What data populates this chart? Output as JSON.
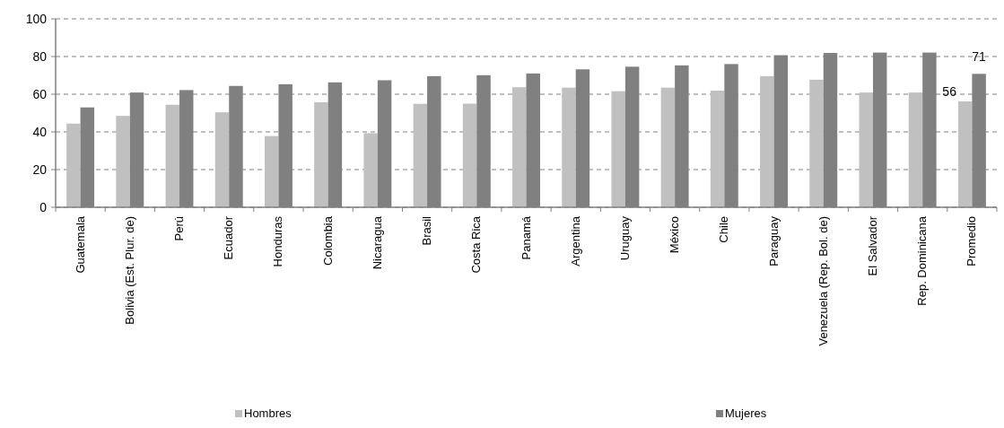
{
  "chart_data": {
    "type": "bar",
    "categories": [
      "Guatemala",
      "Bolivia (Est. Plur. de)",
      "Perú",
      "Ecuador",
      "Honduras",
      "Colombia",
      "Nicaragua",
      "Brasil",
      "Costa Rica",
      "Panamá",
      "Argentina",
      "Uruguay",
      "México",
      "Chile",
      "Paraguay",
      "Venezuela (Rep. Bol. de)",
      "El Salvador",
      "Rep. Dominicana",
      "Promedio"
    ],
    "series": [
      {
        "name": "Hombres",
        "color": "#c0c0c0",
        "values": [
          44.4,
          48.5,
          54.4,
          50.4,
          37.8,
          55.7,
          39.3,
          54.9,
          55.0,
          63.7,
          63.5,
          61.6,
          63.5,
          61.9,
          69.6,
          67.7,
          60.9,
          60.9,
          56.2
        ],
        "value_labels": [
          null,
          null,
          null,
          null,
          null,
          null,
          null,
          null,
          null,
          null,
          null,
          null,
          null,
          null,
          null,
          null,
          null,
          null,
          "56"
        ]
      },
      {
        "name": "Mujeres",
        "color": "#808080",
        "values": [
          53.0,
          60.9,
          62.2,
          64.4,
          65.3,
          66.3,
          67.4,
          69.6,
          70.1,
          71.0,
          73.2,
          74.6,
          75.3,
          76.0,
          80.7,
          81.9,
          82.1,
          82.1,
          70.8
        ],
        "value_labels": [
          null,
          null,
          null,
          null,
          null,
          null,
          null,
          null,
          null,
          null,
          null,
          null,
          null,
          null,
          null,
          null,
          null,
          null,
          "71"
        ]
      }
    ],
    "ylim": [
      0,
      100
    ],
    "yticks": [
      0,
      20,
      40,
      60,
      80,
      100
    ],
    "grid": "y",
    "legend": "bottom"
  }
}
